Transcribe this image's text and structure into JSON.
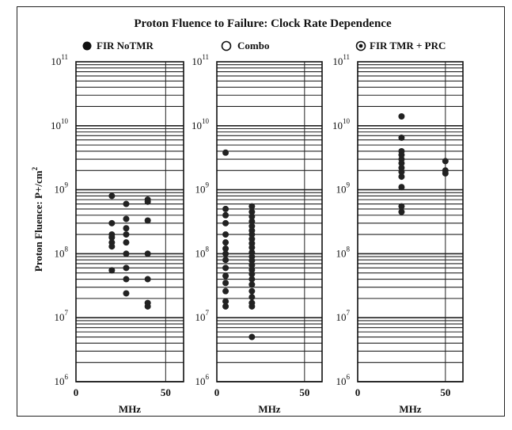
{
  "chart_data": {
    "type": "scatter",
    "title": "Proton Fluence to Failure:   Clock Rate Dependence",
    "ylabel": "Proton Fluence:  P+/cm",
    "ylabel_superscript": "2",
    "y_scale": "log",
    "ylim": [
      1000000,
      100000000000
    ],
    "xlim": [
      0,
      60
    ],
    "y_tick_bases": [
      "10",
      "10",
      "10",
      "10",
      "10",
      "10"
    ],
    "y_tick_exponents": [
      "11",
      "10",
      "9",
      "8",
      "7",
      "6"
    ],
    "grid": "horizontal",
    "legend_placement": "top-left of each panel",
    "panels": [
      {
        "series_name": "FIR NoTMR",
        "marker": "filled",
        "xlabel": "MHz",
        "x_tick_labels": [
          "0",
          "50"
        ],
        "points": [
          [
            20,
            800000000
          ],
          [
            20,
            300000000
          ],
          [
            20,
            200000000
          ],
          [
            20,
            180000000
          ],
          [
            20,
            150000000
          ],
          [
            20,
            130000000
          ],
          [
            20,
            55000000
          ],
          [
            28,
            600000000
          ],
          [
            28,
            350000000
          ],
          [
            28,
            250000000
          ],
          [
            28,
            200000000
          ],
          [
            28,
            150000000
          ],
          [
            28,
            100000000
          ],
          [
            28,
            60000000
          ],
          [
            28,
            40000000
          ],
          [
            28,
            24000000
          ],
          [
            40,
            700000000
          ],
          [
            40,
            650000000
          ],
          [
            40,
            330000000
          ],
          [
            40,
            100000000
          ],
          [
            40,
            40000000
          ],
          [
            40,
            17000000
          ],
          [
            40,
            15000000
          ]
        ]
      },
      {
        "series_name": "Combo",
        "marker": "open",
        "xlabel": "MHz",
        "x_tick_labels": [
          "0",
          "50"
        ],
        "points": [
          [
            5,
            3800000000
          ],
          [
            5,
            500000000
          ],
          [
            5,
            400000000
          ],
          [
            5,
            300000000
          ],
          [
            5,
            200000000
          ],
          [
            5,
            150000000
          ],
          [
            5,
            120000000
          ],
          [
            5,
            100000000
          ],
          [
            5,
            80000000
          ],
          [
            5,
            60000000
          ],
          [
            5,
            45000000
          ],
          [
            5,
            35000000
          ],
          [
            5,
            26000000
          ],
          [
            5,
            18000000
          ],
          [
            5,
            15000000
          ],
          [
            20,
            550000000
          ],
          [
            20,
            450000000
          ],
          [
            20,
            380000000
          ],
          [
            20,
            320000000
          ],
          [
            20,
            270000000
          ],
          [
            20,
            230000000
          ],
          [
            20,
            200000000
          ],
          [
            20,
            170000000
          ],
          [
            20,
            145000000
          ],
          [
            20,
            125000000
          ],
          [
            20,
            105000000
          ],
          [
            20,
            90000000
          ],
          [
            20,
            78000000
          ],
          [
            20,
            66000000
          ],
          [
            20,
            56000000
          ],
          [
            20,
            48000000
          ],
          [
            20,
            40000000
          ],
          [
            20,
            33000000
          ],
          [
            20,
            26000000
          ],
          [
            20,
            21000000
          ],
          [
            20,
            17000000
          ],
          [
            20,
            15000000
          ],
          [
            20,
            5000000
          ]
        ]
      },
      {
        "series_name": "FIR TMR + PRC",
        "marker": "dotted",
        "xlabel": "MHz",
        "x_tick_labels": [
          "0",
          "50"
        ],
        "points": [
          [
            25,
            14000000000
          ],
          [
            25,
            6500000000
          ],
          [
            25,
            4000000000
          ],
          [
            25,
            3500000000
          ],
          [
            25,
            3000000000
          ],
          [
            25,
            2600000000
          ],
          [
            25,
            2200000000
          ],
          [
            25,
            1900000000
          ],
          [
            25,
            1600000000
          ],
          [
            25,
            1100000000
          ],
          [
            25,
            550000000
          ],
          [
            25,
            450000000
          ],
          [
            50,
            2800000000
          ],
          [
            50,
            2000000000
          ],
          [
            50,
            1800000000
          ]
        ]
      }
    ]
  }
}
